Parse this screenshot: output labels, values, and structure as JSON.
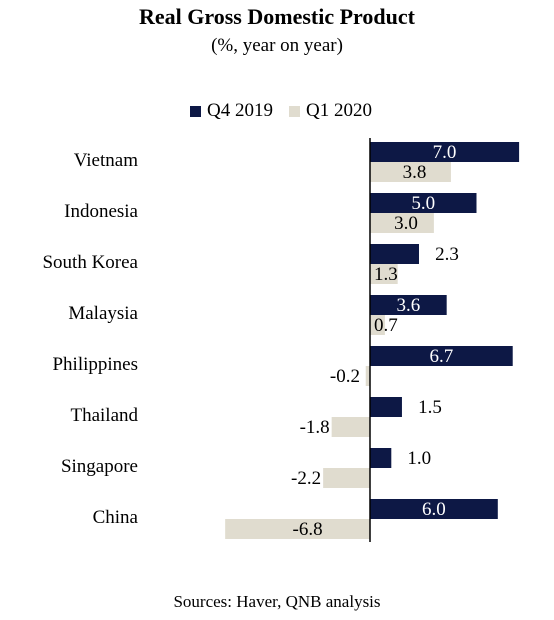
{
  "chart_data": {
    "type": "bar",
    "orientation": "horizontal",
    "title": "Real Gross Domestic Product",
    "subtitle": "(%, year on year)",
    "categories": [
      "Vietnam",
      "Indonesia",
      "South Korea",
      "Malaysia",
      "Philippines",
      "Thailand",
      "Singapore",
      "China"
    ],
    "series": [
      {
        "name": "Q4 2019",
        "color": "#0d1845",
        "values": [
          7.0,
          5.0,
          2.3,
          3.6,
          6.7,
          1.5,
          1.0,
          6.0
        ]
      },
      {
        "name": "Q1 2020",
        "color": "#e0dccf",
        "values": [
          3.8,
          3.0,
          1.3,
          0.7,
          -0.2,
          -1.8,
          -2.2,
          -6.8
        ]
      }
    ],
    "value_labels": {
      "Q4 2019": [
        "7.0",
        "5.0",
        "2.3",
        "3.6",
        "6.7",
        "1.5",
        "1.0",
        "6.0"
      ],
      "Q1 2020": [
        "3.8",
        "3.0",
        "1.3",
        "0.7",
        "-0.2",
        "-1.8",
        "-2.2",
        "-6.8"
      ]
    },
    "xlim": [
      -6.8,
      7.0
    ],
    "legend_position": "top",
    "grid": false,
    "source": "Sources: Haver, QNB analysis"
  }
}
